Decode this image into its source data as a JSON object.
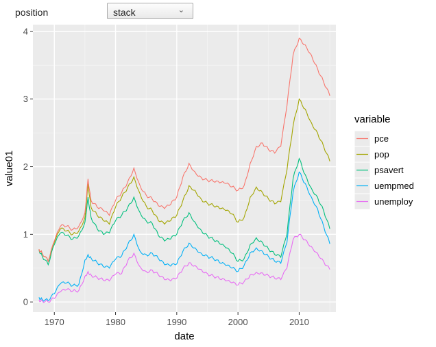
{
  "controls": {
    "position_label": "position",
    "position_value": "stack"
  },
  "chart_data": {
    "type": "line",
    "stacked": true,
    "xlabel": "date",
    "ylabel": "value01",
    "xlim": [
      1966.5,
      2016.0
    ],
    "ylim": [
      -0.15,
      4.1
    ],
    "x_ticks": [
      1970,
      1980,
      1990,
      2000,
      2010
    ],
    "y_ticks": [
      0,
      1,
      2,
      3,
      4
    ],
    "grid": true,
    "legend": {
      "title": "variable",
      "placement": "right"
    },
    "x": [
      1967.5,
      1968,
      1969,
      1970,
      1971,
      1972,
      1973,
      1974,
      1975,
      1975.5,
      1976,
      1977,
      1978,
      1979,
      1980,
      1981,
      1982,
      1983,
      1984,
      1985,
      1986,
      1987,
      1988,
      1989,
      1990,
      1991,
      1992,
      1993,
      1994,
      1995,
      1996,
      1997,
      1998,
      1999,
      2000,
      2001,
      2002,
      2003,
      2004,
      2005,
      2006,
      2007,
      2008,
      2009,
      2010,
      2011,
      2012,
      2013,
      2014,
      2015
    ],
    "series": [
      {
        "name": "unemploy",
        "color": "#E76BF3",
        "values": [
          0.03,
          0.02,
          0.0,
          0.05,
          0.15,
          0.18,
          0.16,
          0.17,
          0.38,
          0.45,
          0.4,
          0.36,
          0.32,
          0.31,
          0.41,
          0.42,
          0.61,
          0.72,
          0.52,
          0.45,
          0.47,
          0.4,
          0.33,
          0.31,
          0.35,
          0.49,
          0.58,
          0.54,
          0.48,
          0.42,
          0.38,
          0.34,
          0.31,
          0.28,
          0.25,
          0.3,
          0.4,
          0.44,
          0.43,
          0.39,
          0.35,
          0.33,
          0.5,
          0.92,
          1.0,
          0.92,
          0.82,
          0.72,
          0.6,
          0.48
        ]
      },
      {
        "name": "uempmed",
        "color": "#00B0F6",
        "values": [
          0.07,
          0.04,
          0.02,
          0.12,
          0.27,
          0.28,
          0.24,
          0.26,
          0.62,
          0.7,
          0.65,
          0.58,
          0.52,
          0.5,
          0.63,
          0.68,
          0.85,
          1.0,
          0.75,
          0.7,
          0.72,
          0.64,
          0.55,
          0.53,
          0.56,
          0.75,
          0.87,
          0.8,
          0.72,
          0.68,
          0.64,
          0.58,
          0.54,
          0.5,
          0.45,
          0.54,
          0.73,
          0.8,
          0.75,
          0.67,
          0.6,
          0.57,
          0.88,
          1.62,
          1.92,
          1.75,
          1.55,
          1.38,
          1.12,
          0.86
        ]
      },
      {
        "name": "psavert",
        "color": "#00BF7D",
        "values": [
          0.77,
          0.68,
          0.55,
          0.85,
          1.02,
          0.98,
          0.93,
          0.98,
          1.18,
          1.55,
          1.25,
          1.08,
          1.0,
          1.02,
          1.2,
          1.28,
          1.4,
          1.55,
          1.32,
          1.2,
          1.16,
          0.98,
          0.9,
          0.93,
          1.0,
          1.2,
          1.32,
          1.18,
          1.06,
          0.98,
          0.92,
          0.86,
          0.8,
          0.72,
          0.6,
          0.64,
          0.85,
          0.95,
          0.88,
          0.78,
          0.7,
          0.66,
          1.0,
          1.82,
          2.12,
          1.88,
          1.68,
          1.55,
          1.35,
          1.08
        ]
      },
      {
        "name": "pop",
        "color": "#A3A500",
        "values": [
          0.78,
          0.72,
          0.6,
          0.88,
          1.08,
          1.05,
          1.0,
          1.05,
          1.25,
          1.75,
          1.4,
          1.28,
          1.2,
          1.15,
          1.4,
          1.55,
          1.7,
          1.85,
          1.6,
          1.42,
          1.35,
          1.2,
          1.15,
          1.2,
          1.28,
          1.5,
          1.72,
          1.65,
          1.52,
          1.46,
          1.42,
          1.38,
          1.35,
          1.3,
          1.18,
          1.25,
          1.55,
          1.7,
          1.62,
          1.52,
          1.45,
          1.48,
          1.95,
          2.6,
          3.0,
          2.85,
          2.65,
          2.5,
          2.3,
          2.08
        ]
      },
      {
        "name": "pce",
        "color": "#F8766D",
        "values": [
          0.78,
          0.72,
          0.6,
          0.9,
          1.12,
          1.12,
          1.07,
          1.12,
          1.32,
          1.82,
          1.5,
          1.4,
          1.35,
          1.28,
          1.5,
          1.62,
          1.78,
          1.98,
          1.72,
          1.58,
          1.52,
          1.42,
          1.38,
          1.44,
          1.55,
          1.85,
          2.05,
          1.92,
          1.84,
          1.8,
          1.78,
          1.76,
          1.75,
          1.7,
          1.65,
          1.72,
          2.05,
          2.3,
          2.35,
          2.25,
          2.2,
          2.3,
          2.9,
          3.65,
          3.9,
          3.8,
          3.65,
          3.45,
          3.25,
          3.05
        ]
      }
    ]
  }
}
